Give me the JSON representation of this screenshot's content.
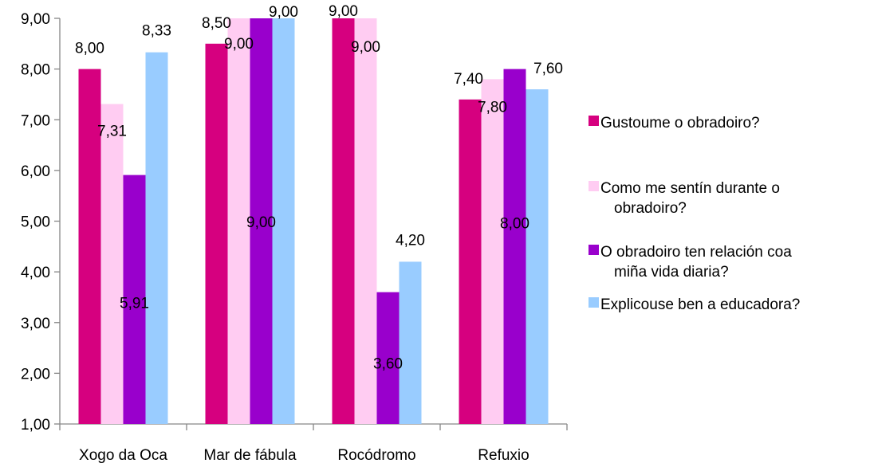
{
  "chart_data": {
    "type": "bar",
    "title": "",
    "xlabel": "",
    "ylabel": "",
    "ylim": [
      1,
      9
    ],
    "yticks": [
      "1,00",
      "2,00",
      "3,00",
      "4,00",
      "5,00",
      "6,00",
      "7,00",
      "8,00",
      "9,00"
    ],
    "grid": false,
    "legend_position": "right",
    "categories": [
      "Xogo da Oca",
      "Mar de fábula",
      "Rocódromo",
      "Refuxio"
    ],
    "series": [
      {
        "name": "Gustoume o obradoiro?",
        "color": "#d6007f",
        "values": [
          8.0,
          8.5,
          9.0,
          7.4
        ],
        "labels": [
          "8,00",
          "8,50",
          "9,00",
          "7,40"
        ]
      },
      {
        "name": "Como me sentín durante o obradoiro?",
        "color": "#ffccf2",
        "values": [
          7.31,
          9.0,
          9.0,
          7.8
        ],
        "labels": [
          "7,31",
          "9,00",
          "9,00",
          "7,80"
        ]
      },
      {
        "name": "O obradoiro ten relación coa miña vida diaria?",
        "color": "#9900cc",
        "values": [
          5.91,
          9.0,
          3.6,
          8.0
        ],
        "labels": [
          "5,91",
          "9,00",
          "3,60",
          "8,00"
        ]
      },
      {
        "name": "Explicouse ben a educadora?",
        "color": "#99ccff",
        "values": [
          8.33,
          9.0,
          4.2,
          7.6
        ],
        "labels": [
          "8,33",
          "9,00",
          "4,20",
          "7,60"
        ]
      }
    ],
    "legend_lines": [
      [
        "Gustoume o obradoiro?"
      ],
      [
        "Como me sentín durante o",
        "obradoiro?"
      ],
      [
        "O obradoiro ten relación coa",
        "miña vida diaria?"
      ],
      [
        "Explicouse ben a educadora?"
      ]
    ]
  }
}
